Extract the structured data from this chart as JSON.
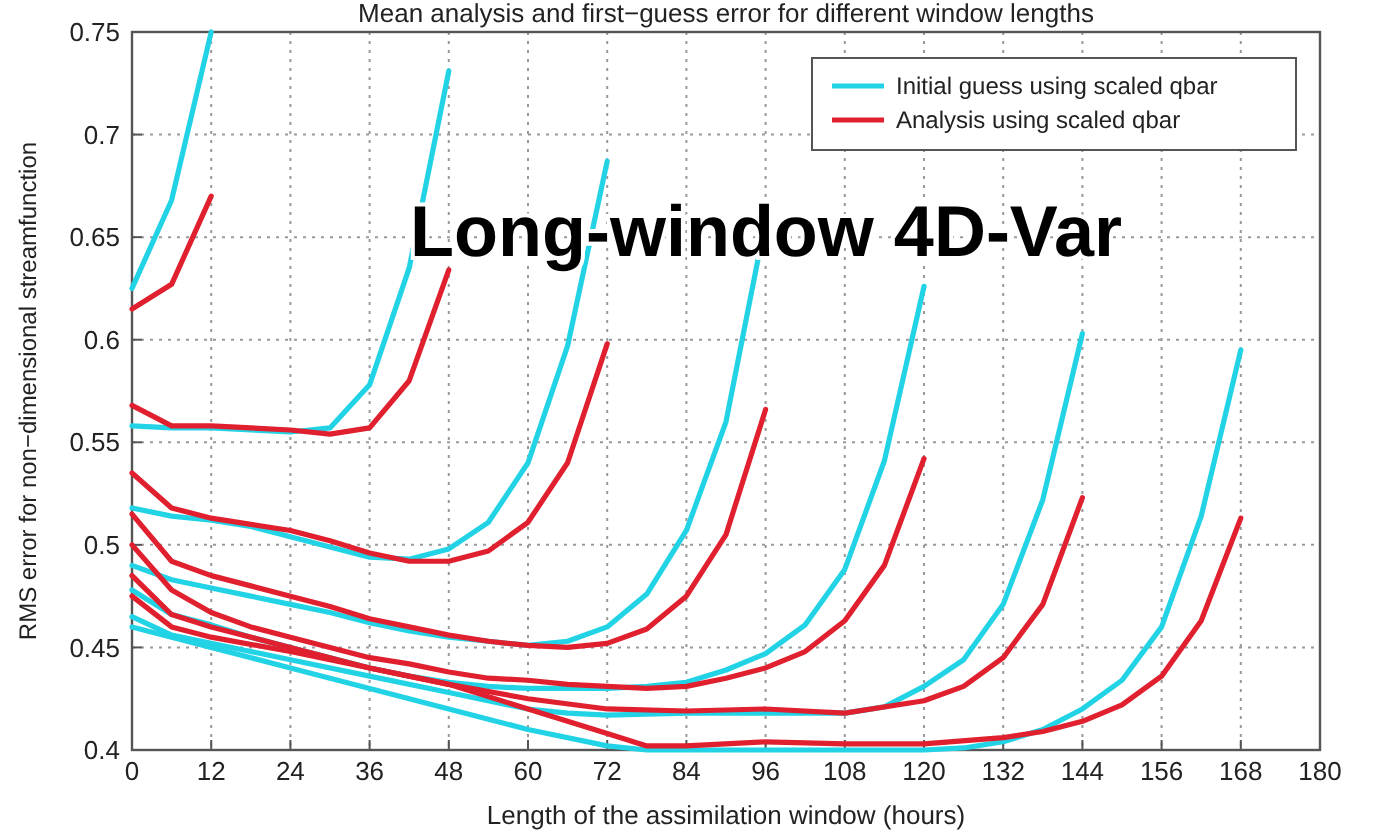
{
  "chart_data": {
    "type": "line",
    "title": "Mean analysis and first−guess error for different window lengths",
    "xlabel": "Length of the assimilation window (hours)",
    "ylabel": "RMS error for non−dimensional streamfunction",
    "annotations": [
      "Long-window 4D-Var"
    ],
    "xlim": [
      0,
      180
    ],
    "xticks": [
      0,
      12,
      24,
      36,
      48,
      60,
      72,
      84,
      96,
      108,
      120,
      132,
      144,
      156,
      168,
      180
    ],
    "ylim": [
      0.4,
      0.75
    ],
    "yticks": [
      0.4,
      0.45,
      0.5,
      0.55,
      0.6,
      0.65,
      0.7,
      0.75
    ],
    "grid": true,
    "legend": "top right",
    "line_style": "solid",
    "series": [
      {
        "name": "Initial guess using scaled qbar",
        "color": "#22d3e6",
        "x": [
          0,
          6,
          12
        ],
        "values": [
          0.625,
          0.668,
          0.75
        ]
      },
      {
        "name": "Analysis using scaled qbar",
        "color": "#e0202e",
        "x": [
          0,
          6,
          12
        ],
        "values": [
          0.615,
          0.627,
          0.67
        ]
      },
      {
        "color": "#22d3e6",
        "x": [
          0,
          6,
          12,
          18,
          24,
          30,
          36,
          42,
          48
        ],
        "values": [
          0.558,
          0.557,
          0.557,
          0.556,
          0.555,
          0.557,
          0.578,
          0.635,
          0.731
        ]
      },
      {
        "color": "#e0202e",
        "x": [
          0,
          6,
          12,
          18,
          24,
          30,
          36,
          42,
          48
        ],
        "values": [
          0.568,
          0.558,
          0.558,
          0.557,
          0.556,
          0.554,
          0.557,
          0.58,
          0.634
        ]
      },
      {
        "color": "#22d3e6",
        "x": [
          0,
          6,
          12,
          18,
          24,
          30,
          36,
          42,
          48,
          54,
          60,
          66,
          72
        ],
        "values": [
          0.518,
          0.514,
          0.512,
          0.509,
          0.504,
          0.499,
          0.494,
          0.493,
          0.498,
          0.511,
          0.54,
          0.597,
          0.687
        ]
      },
      {
        "color": "#e0202e",
        "x": [
          0,
          6,
          12,
          18,
          24,
          30,
          36,
          42,
          48,
          54,
          60,
          66,
          72
        ],
        "values": [
          0.535,
          0.518,
          0.513,
          0.51,
          0.507,
          0.502,
          0.496,
          0.492,
          0.492,
          0.497,
          0.511,
          0.54,
          0.598
        ]
      },
      {
        "color": "#22d3e6",
        "x": [
          0,
          6,
          12,
          18,
          24,
          30,
          36,
          42,
          48,
          54,
          60,
          66,
          72,
          78,
          84,
          90,
          96
        ],
        "values": [
          0.49,
          0.483,
          0.479,
          0.475,
          0.471,
          0.467,
          0.462,
          0.458,
          0.455,
          0.453,
          0.451,
          0.453,
          0.46,
          0.476,
          0.507,
          0.56,
          0.658
        ]
      },
      {
        "color": "#e0202e",
        "x": [
          0,
          6,
          12,
          18,
          24,
          30,
          36,
          42,
          48,
          54,
          60,
          66,
          72,
          78,
          84,
          90,
          96
        ],
        "values": [
          0.515,
          0.492,
          0.485,
          0.48,
          0.475,
          0.47,
          0.464,
          0.46,
          0.456,
          0.453,
          0.451,
          0.45,
          0.452,
          0.459,
          0.475,
          0.505,
          0.566
        ]
      },
      {
        "color": "#22d3e6",
        "x": [
          0,
          6,
          12,
          18,
          24,
          30,
          36,
          42,
          48,
          54,
          60,
          66,
          72,
          78,
          84,
          90,
          96,
          102,
          108,
          114,
          120
        ],
        "values": [
          0.478,
          0.466,
          0.461,
          0.455,
          0.45,
          0.445,
          0.44,
          0.436,
          0.433,
          0.431,
          0.43,
          0.43,
          0.43,
          0.431,
          0.433,
          0.439,
          0.447,
          0.461,
          0.488,
          0.541,
          0.626
        ]
      },
      {
        "color": "#e0202e",
        "x": [
          0,
          6,
          12,
          18,
          24,
          30,
          36,
          42,
          48,
          54,
          60,
          66,
          72,
          78,
          84,
          90,
          96,
          102,
          108,
          114,
          120
        ],
        "values": [
          0.5,
          0.478,
          0.467,
          0.46,
          0.455,
          0.45,
          0.445,
          0.442,
          0.438,
          0.435,
          0.434,
          0.432,
          0.431,
          0.43,
          0.431,
          0.435,
          0.44,
          0.448,
          0.463,
          0.49,
          0.542
        ]
      },
      {
        "color": "#22d3e6",
        "x": [
          0,
          6,
          12,
          24,
          36,
          48,
          60,
          66,
          72,
          84,
          96,
          108,
          114,
          120,
          126,
          132,
          138,
          144
        ],
        "values": [
          0.465,
          0.456,
          0.452,
          0.444,
          0.436,
          0.428,
          0.42,
          0.418,
          0.417,
          0.418,
          0.418,
          0.418,
          0.421,
          0.431,
          0.444,
          0.471,
          0.522,
          0.603
        ]
      },
      {
        "color": "#e0202e",
        "x": [
          0,
          6,
          12,
          24,
          36,
          48,
          60,
          72,
          84,
          96,
          108,
          120,
          126,
          132,
          138,
          144
        ],
        "values": [
          0.485,
          0.466,
          0.46,
          0.45,
          0.44,
          0.432,
          0.425,
          0.42,
          0.419,
          0.42,
          0.418,
          0.424,
          0.431,
          0.445,
          0.471,
          0.523
        ]
      },
      {
        "color": "#22d3e6",
        "x": [
          0,
          12,
          24,
          36,
          48,
          60,
          72,
          78,
          84,
          96,
          108,
          120,
          126,
          132,
          138,
          144,
          150,
          156,
          162,
          168
        ],
        "values": [
          0.46,
          0.45,
          0.44,
          0.43,
          0.42,
          0.41,
          0.402,
          0.4,
          0.4,
          0.4,
          0.4,
          0.4,
          0.401,
          0.404,
          0.41,
          0.42,
          0.434,
          0.46,
          0.514,
          0.595
        ]
      },
      {
        "color": "#e0202e",
        "x": [
          0,
          6,
          12,
          24,
          36,
          48,
          60,
          72,
          78,
          84,
          96,
          108,
          120,
          132,
          138,
          144,
          150,
          156,
          162,
          168
        ],
        "values": [
          0.475,
          0.46,
          0.455,
          0.448,
          0.44,
          0.432,
          0.42,
          0.408,
          0.402,
          0.402,
          0.404,
          0.403,
          0.403,
          0.406,
          0.409,
          0.414,
          0.422,
          0.436,
          0.463,
          0.513
        ]
      }
    ]
  }
}
